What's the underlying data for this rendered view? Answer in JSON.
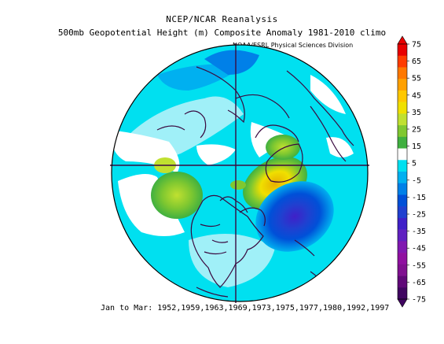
{
  "title": "NCEP/NCAR Reanalysis",
  "subtitle": "500mb Geopotential Height (m) Composite Anomaly 1981-2010 climo",
  "credit": "NOAA/ESRL Physical Sciences Division",
  "footer": "Jan to Mar: 1952,1959,1963,1969,1973,1975,1977,1980,1992,1997",
  "colorbar": {
    "labels": [
      "75",
      "65",
      "55",
      "45",
      "35",
      "25",
      "15",
      "5",
      "-5",
      "-15",
      "-25",
      "-35",
      "-45",
      "-55",
      "-65",
      "-75"
    ],
    "colors": [
      "#e80000",
      "#ff3c00",
      "#ff7800",
      "#ffa000",
      "#ffc800",
      "#f0e000",
      "#c0e030",
      "#80c830",
      "#40b040",
      "#ffffff",
      "#00e0f0",
      "#00b0f0",
      "#0080e8",
      "#0050d8",
      "#2040d0",
      "#4020c8",
      "#6020c0",
      "#8018b0",
      "#9010a0",
      "#801090",
      "#600878",
      "#400560"
    ]
  }
}
